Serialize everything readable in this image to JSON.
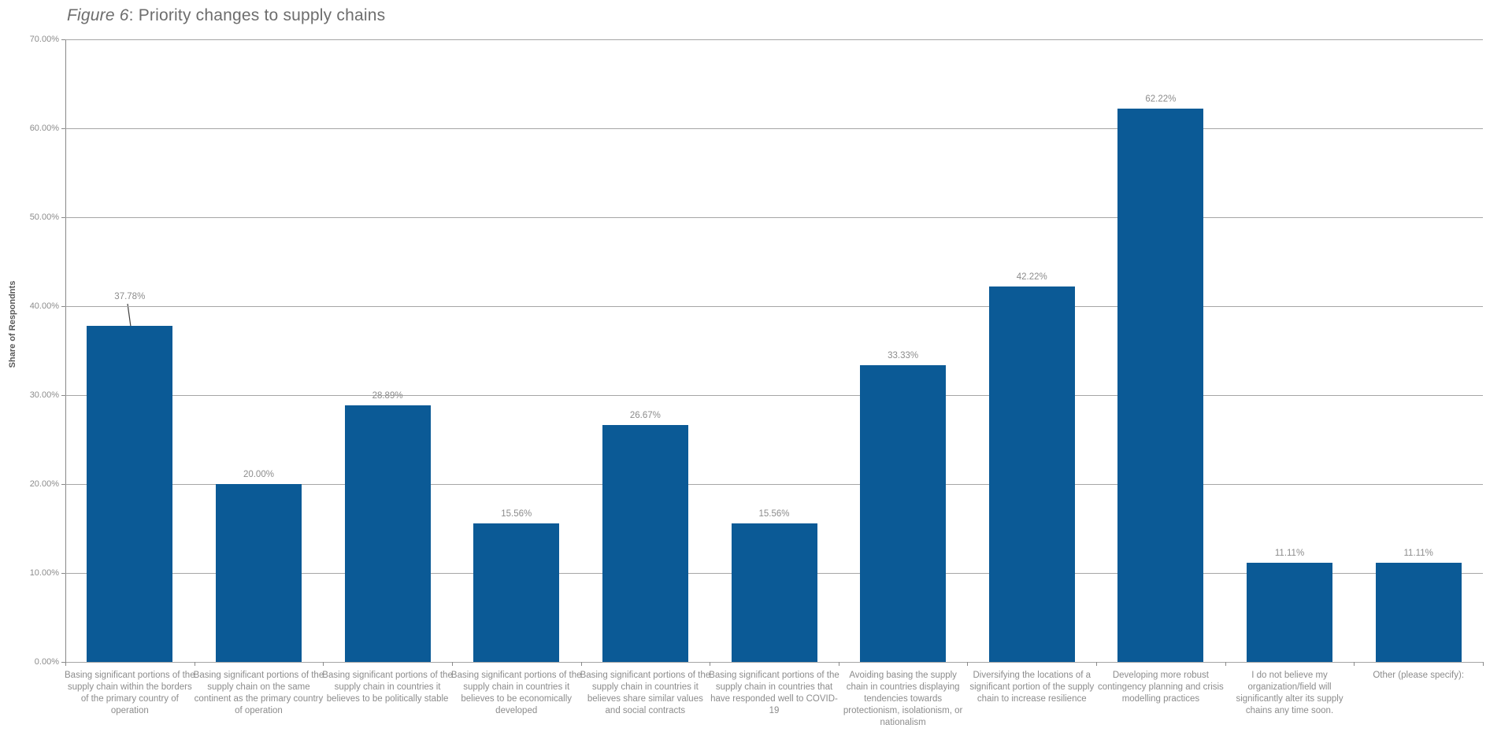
{
  "chart_title": {
    "prefix": "Figure 6",
    "rest": ": Priority changes to supply chains"
  },
  "chart_data": {
    "type": "bar",
    "title": "Figure 6: Priority changes to supply chains",
    "xlabel": "",
    "ylabel": "Share of Respondnts",
    "ylim": [
      0,
      70
    ],
    "grid": true,
    "legend": false,
    "ytick_labels": [
      "0.00%",
      "10.00%",
      "20.00%",
      "30.00%",
      "40.00%",
      "50.00%",
      "60.00%",
      "70.00%"
    ],
    "categories": [
      "Basing significant portions of the supply chain within the borders of the primary country of operation",
      "Basing significant portions of the supply chain on the same continent as the primary country of operation",
      "Basing significant portions of the supply chain in countries it believes to be politically stable",
      "Basing significant portions of the supply chain in countries it believes to be economically developed",
      "Basing significant portions of the supply chain in countries it believes share similar values and social contracts",
      "Basing significant portions of the supply chain in countries that have responded well to COVID-19",
      "Avoiding basing the supply chain in countries displaying tendencies towards protectionism, isolationism, or nationalism",
      "Diversifying the locations of a significant portion of the supply chain to increase resilience",
      "Developing more robust contingency planning and crisis modelling practices",
      "I do not believe my organization/field will significantly alter its supply chains any time soon.",
      "Other (please specify):"
    ],
    "values": [
      37.78,
      20.0,
      28.89,
      15.56,
      26.67,
      15.56,
      33.33,
      42.22,
      62.22,
      11.11,
      11.11
    ],
    "data_labels": [
      "37.78%",
      "20.00%",
      "28.89%",
      "15.56%",
      "26.67%",
      "15.56%",
      "33.33%",
      "42.22%",
      "62.22%",
      "11.11%",
      "11.11%"
    ],
    "colors": {
      "bar": "#0b5a96",
      "gridline": "#a6a6a6",
      "axis_line": "#898989",
      "tick_label": "#8c8c8c",
      "category_label": "#8c8c8c",
      "data_label": "#8c8c8c",
      "title": "#6d6d6d",
      "y_axis_title": "#595959",
      "leader_line": "#404040"
    }
  }
}
